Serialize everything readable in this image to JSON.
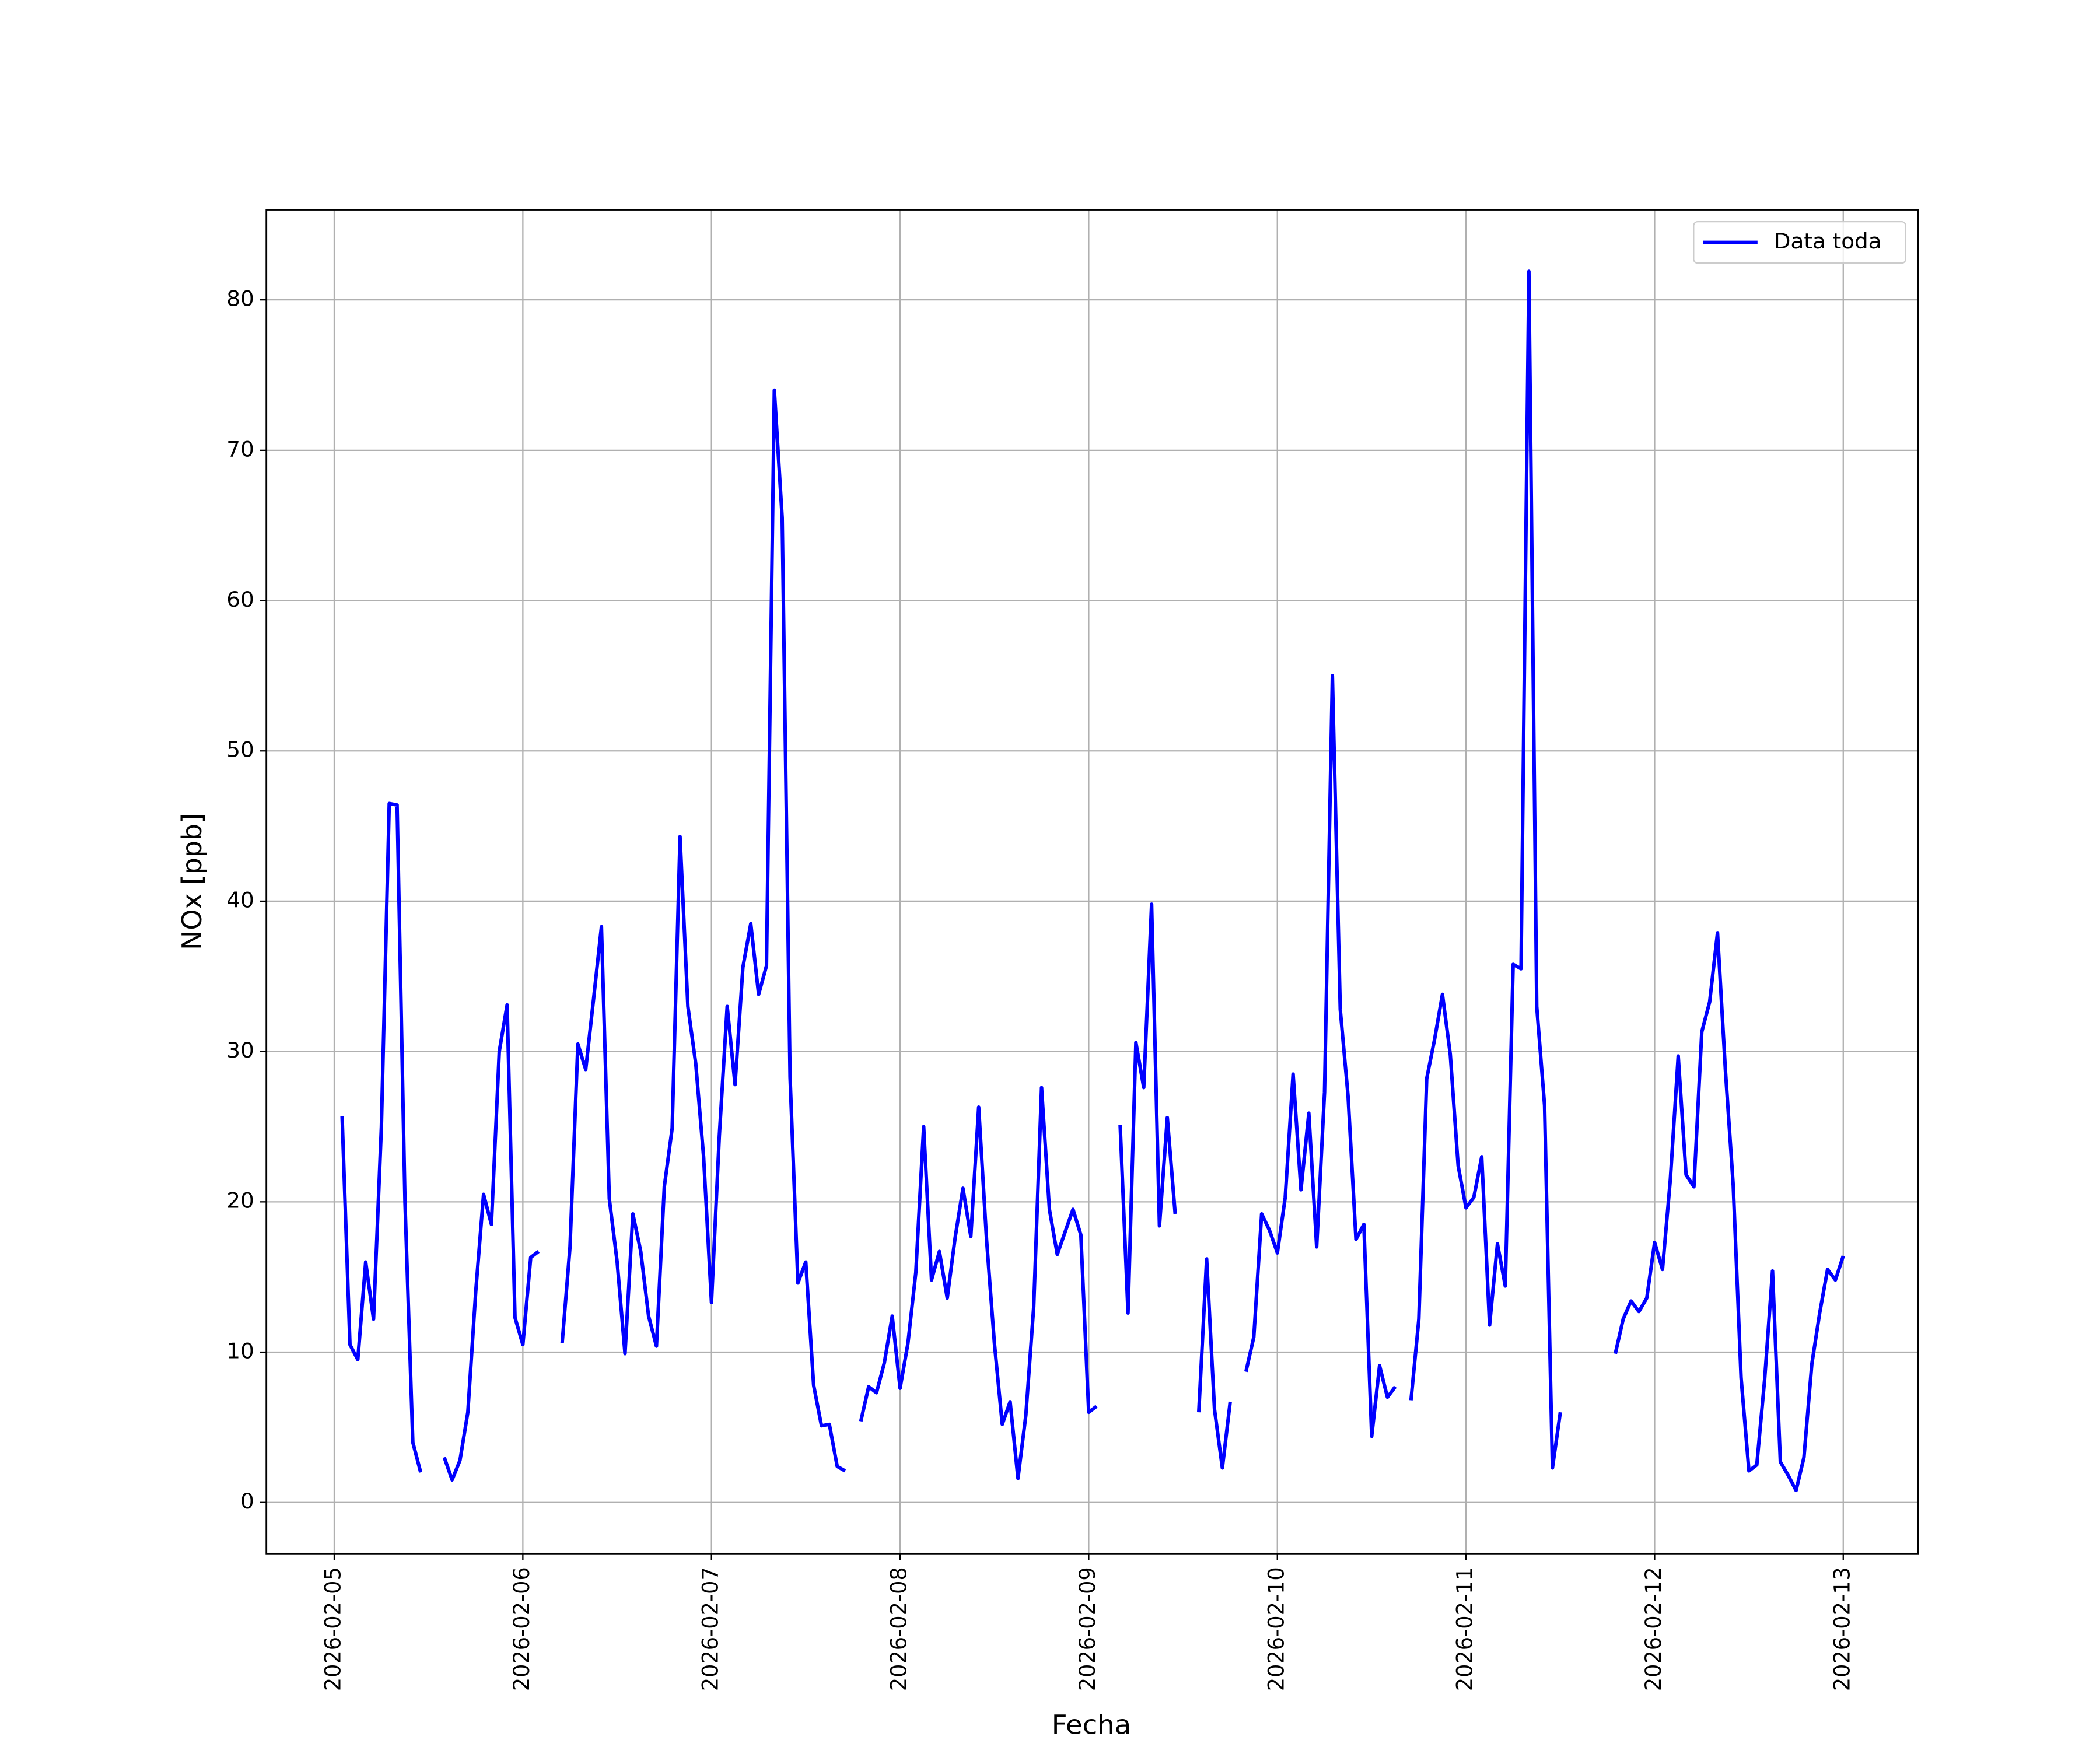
{
  "chart_data": {
    "type": "line",
    "xlabel": "Fecha",
    "ylabel": "NOx [ppb]",
    "xlim": [
      "2026-02-04T15:22",
      "2026-02-13T09:30"
    ],
    "xticks": [
      "2026-02-05",
      "2026-02-06",
      "2026-02-07",
      "2026-02-08",
      "2026-02-09",
      "2026-02-10",
      "2026-02-11",
      "2026-02-12",
      "2026-02-13"
    ],
    "ylim": [
      -3.4,
      86
    ],
    "yticks": [
      0,
      10,
      20,
      30,
      40,
      50,
      60,
      70,
      80
    ],
    "grid": true,
    "legend": "upper right",
    "x": [
      "2026-02-05T01:00",
      "2026-02-05T02:00",
      "2026-02-05T03:00",
      "2026-02-05T04:00",
      "2026-02-05T05:00",
      "2026-02-05T06:00",
      "2026-02-05T07:00",
      "2026-02-05T08:00",
      "2026-02-05T09:00",
      "2026-02-05T10:00",
      "2026-02-05T11:00",
      "2026-02-05T12:00",
      "2026-02-05T13:00",
      "2026-02-05T14:00",
      "2026-02-05T15:00",
      "2026-02-05T16:00",
      "2026-02-05T17:00",
      "2026-02-05T18:00",
      "2026-02-05T19:00",
      "2026-02-05T20:00",
      "2026-02-05T21:00",
      "2026-02-05T22:00",
      "2026-02-05T23:00",
      "2026-02-06T00:00",
      "2026-02-06T01:00",
      "2026-02-06T02:00",
      "2026-02-06T03:00",
      "2026-02-06T04:00",
      "2026-02-06T05:00",
      "2026-02-06T06:00",
      "2026-02-06T07:00",
      "2026-02-06T08:00",
      "2026-02-06T09:00",
      "2026-02-06T10:00",
      "2026-02-06T11:00",
      "2026-02-06T12:00",
      "2026-02-06T13:00",
      "2026-02-06T14:00",
      "2026-02-06T15:00",
      "2026-02-06T16:00",
      "2026-02-06T17:00",
      "2026-02-06T18:00",
      "2026-02-06T19:00",
      "2026-02-06T20:00",
      "2026-02-06T21:00",
      "2026-02-06T22:00",
      "2026-02-06T23:00",
      "2026-02-07T00:00",
      "2026-02-07T01:00",
      "2026-02-07T02:00",
      "2026-02-07T03:00",
      "2026-02-07T04:00",
      "2026-02-07T05:00",
      "2026-02-07T06:00",
      "2026-02-07T07:00",
      "2026-02-07T08:00",
      "2026-02-07T09:00",
      "2026-02-07T10:00",
      "2026-02-07T11:00",
      "2026-02-07T12:00",
      "2026-02-07T13:00",
      "2026-02-07T14:00",
      "2026-02-07T15:00",
      "2026-02-07T16:00",
      "2026-02-07T17:00",
      "2026-02-07T18:00",
      "2026-02-07T19:00",
      "2026-02-07T20:00",
      "2026-02-07T21:00",
      "2026-02-07T22:00",
      "2026-02-07T23:00",
      "2026-02-08T00:00",
      "2026-02-08T01:00",
      "2026-02-08T02:00",
      "2026-02-08T03:00",
      "2026-02-08T04:00",
      "2026-02-08T05:00",
      "2026-02-08T06:00",
      "2026-02-08T07:00",
      "2026-02-08T08:00",
      "2026-02-08T09:00",
      "2026-02-08T10:00",
      "2026-02-08T11:00",
      "2026-02-08T12:00",
      "2026-02-08T13:00",
      "2026-02-08T14:00",
      "2026-02-08T15:00",
      "2026-02-08T16:00",
      "2026-02-08T17:00",
      "2026-02-08T18:00",
      "2026-02-08T19:00",
      "2026-02-08T20:00",
      "2026-02-08T21:00",
      "2026-02-08T22:00",
      "2026-02-08T23:00",
      "2026-02-09T00:00",
      "2026-02-09T01:00",
      "2026-02-09T02:00",
      "2026-02-09T03:00",
      "2026-02-09T04:00",
      "2026-02-09T05:00",
      "2026-02-09T06:00",
      "2026-02-09T07:00",
      "2026-02-09T08:00",
      "2026-02-09T09:00",
      "2026-02-09T10:00",
      "2026-02-09T11:00",
      "2026-02-09T12:00",
      "2026-02-09T13:00",
      "2026-02-09T14:00",
      "2026-02-09T15:00",
      "2026-02-09T16:00",
      "2026-02-09T17:00",
      "2026-02-09T18:00",
      "2026-02-09T19:00",
      "2026-02-09T20:00",
      "2026-02-09T21:00",
      "2026-02-09T22:00",
      "2026-02-09T23:00",
      "2026-02-10T00:00",
      "2026-02-10T01:00",
      "2026-02-10T02:00",
      "2026-02-10T03:00",
      "2026-02-10T04:00",
      "2026-02-10T05:00",
      "2026-02-10T06:00",
      "2026-02-10T07:00",
      "2026-02-10T08:00",
      "2026-02-10T09:00",
      "2026-02-10T10:00",
      "2026-02-10T11:00",
      "2026-02-10T12:00",
      "2026-02-10T13:00",
      "2026-02-10T14:00",
      "2026-02-10T15:00",
      "2026-02-10T16:00",
      "2026-02-10T17:00",
      "2026-02-10T18:00",
      "2026-02-10T19:00",
      "2026-02-10T20:00",
      "2026-02-10T21:00",
      "2026-02-10T22:00",
      "2026-02-10T23:00",
      "2026-02-11T00:00",
      "2026-02-11T01:00",
      "2026-02-11T02:00",
      "2026-02-11T03:00",
      "2026-02-11T04:00",
      "2026-02-11T05:00",
      "2026-02-11T06:00",
      "2026-02-11T07:00",
      "2026-02-11T08:00",
      "2026-02-11T09:00",
      "2026-02-11T10:00",
      "2026-02-11T11:00",
      "2026-02-11T12:00",
      "2026-02-11T13:00",
      "2026-02-11T14:00",
      "2026-02-11T15:00",
      "2026-02-11T16:00",
      "2026-02-11T17:00",
      "2026-02-11T18:00",
      "2026-02-11T19:00",
      "2026-02-11T20:00",
      "2026-02-11T21:00",
      "2026-02-11T22:00",
      "2026-02-11T23:00",
      "2026-02-12T00:00",
      "2026-02-12T01:00",
      "2026-02-12T02:00",
      "2026-02-12T03:00",
      "2026-02-12T04:00",
      "2026-02-12T05:00",
      "2026-02-12T06:00",
      "2026-02-12T07:00",
      "2026-02-12T08:00",
      "2026-02-12T09:00",
      "2026-02-12T10:00",
      "2026-02-12T11:00",
      "2026-02-12T12:00",
      "2026-02-12T13:00",
      "2026-02-12T14:00",
      "2026-02-12T15:00",
      "2026-02-12T16:00",
      "2026-02-12T17:00",
      "2026-02-12T18:00",
      "2026-02-12T19:00",
      "2026-02-12T20:00",
      "2026-02-12T21:00",
      "2026-02-12T22:00",
      "2026-02-12T23:00",
      "2026-02-13T00:00"
    ],
    "series": [
      {
        "name": "Data toda",
        "color": "#0000ff",
        "values": [
          25.7,
          10.5,
          9.5,
          16,
          12.2,
          25,
          46.5,
          46.4,
          20,
          4,
          2,
          null,
          null,
          3,
          1.5,
          2.8,
          6,
          14,
          20.5,
          18.5,
          30,
          33.1,
          12.3,
          10.5,
          16.3,
          16.7,
          null,
          null,
          10.6,
          17,
          30.5,
          28.8,
          33.5,
          38.3,
          20.2,
          16,
          9.9,
          19.2,
          16.7,
          12.4,
          10.4,
          21,
          24.9,
          44.3,
          33,
          29.2,
          23,
          13.3,
          24.4,
          33,
          27.8,
          35.6,
          38.5,
          33.8,
          35.7,
          74,
          65.5,
          28.3,
          14.6,
          16,
          7.8,
          5.1,
          5.2,
          2.4,
          2.1,
          null,
          5.4,
          7.7,
          7.3,
          9.3,
          12.4,
          7.6,
          10.6,
          15.3,
          25,
          14.8,
          16.7,
          13.6,
          17.6,
          20.9,
          17.7,
          26.3,
          17.5,
          10.6,
          5.2,
          6.7,
          1.6,
          5.8,
          13,
          27.6,
          19.5,
          16.5,
          18,
          19.5,
          17.8,
          6,
          6.4,
          null,
          null,
          25.1,
          12.6,
          30.6,
          27.6,
          39.8,
          18.4,
          25.6,
          19.2,
          null,
          null,
          6,
          16.2,
          6.2,
          2.3,
          6.7,
          null,
          8.7,
          11,
          19.2,
          18.1,
          16.6,
          20.3,
          28.5,
          20.8,
          25.9,
          17,
          27.3,
          55,
          32.8,
          27,
          17.5,
          18.5,
          4.4,
          9.1,
          7,
          7.7,
          null,
          6.8,
          12.2,
          28.2,
          30.8,
          33.8,
          29.8,
          22.4,
          19.6,
          20.3,
          23,
          11.8,
          17.2,
          14.4,
          35.8,
          35.5,
          81.9,
          33,
          26.4,
          2.3,
          6,
          null,
          null,
          null,
          null,
          null,
          null,
          9.9,
          12.2,
          13.4,
          12.7,
          13.6,
          17.3,
          15.5,
          21.5,
          29.7,
          21.8,
          21,
          31.3,
          33.3,
          37.9,
          28.8,
          21.1,
          8.3,
          2.1,
          2.5,
          8.2,
          15.4,
          2.7,
          1.8,
          0.8,
          3,
          9.2,
          12.6,
          15.5,
          14.8,
          16.4
        ]
      }
    ]
  }
}
